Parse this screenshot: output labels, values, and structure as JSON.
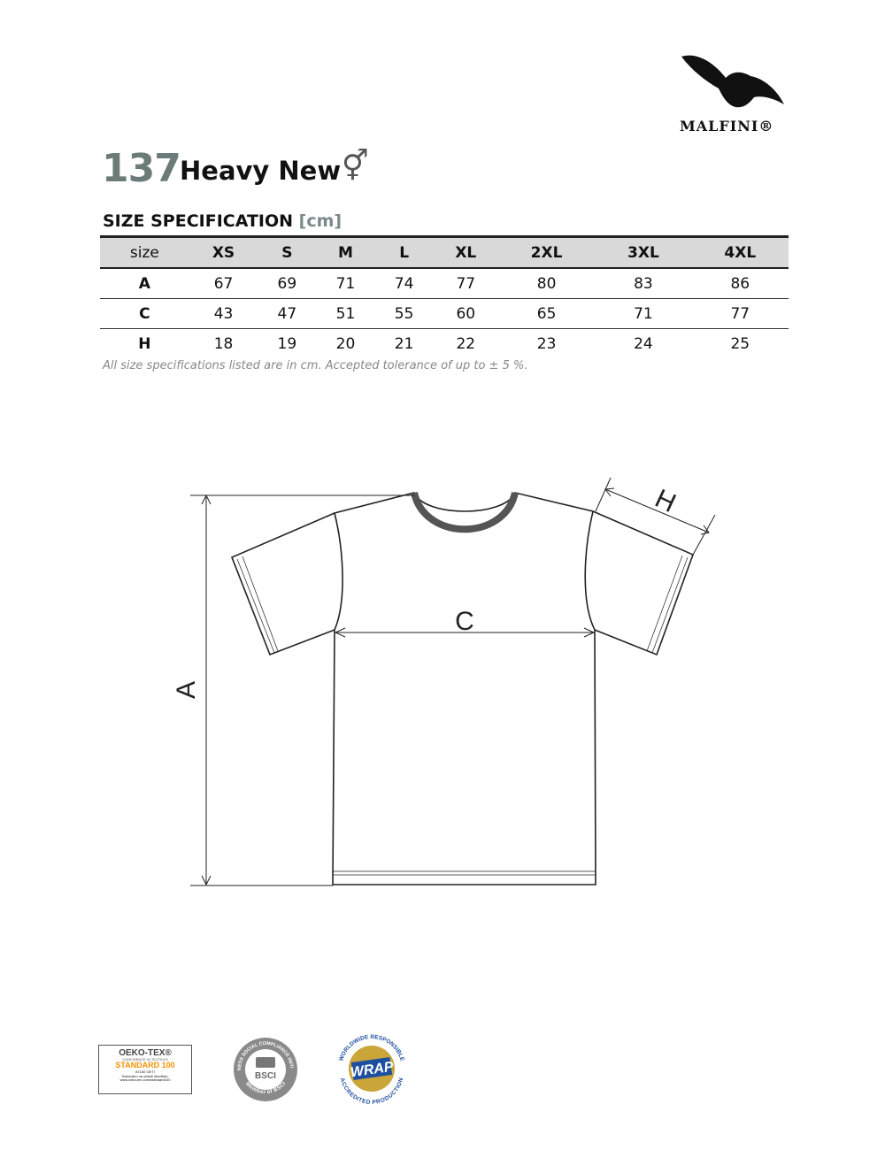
{
  "brand": {
    "name": "MALFINI®"
  },
  "product": {
    "number": "137",
    "name": "Heavy New",
    "gender_symbol": "⚥"
  },
  "spec": {
    "title": "SIZE SPECIFICATION",
    "unit": "[cm]"
  },
  "table": {
    "headers": [
      "size",
      "XS",
      "S",
      "M",
      "L",
      "XL",
      "2XL",
      "3XL",
      "4XL"
    ],
    "rows": [
      {
        "label": "A",
        "values": [
          "67",
          "69",
          "71",
          "74",
          "77",
          "80",
          "83",
          "86"
        ]
      },
      {
        "label": "C",
        "values": [
          "43",
          "47",
          "51",
          "55",
          "60",
          "65",
          "71",
          "77"
        ]
      },
      {
        "label": "H",
        "values": [
          "18",
          "19",
          "20",
          "21",
          "22",
          "23",
          "24",
          "25"
        ]
      }
    ]
  },
  "note": "All size specifications listed are in cm. Accepted tolerance of up to ± 5 %.",
  "diagram": {
    "labels": {
      "a": "A",
      "c": "C",
      "h": "H"
    }
  },
  "certifications": {
    "oeko": {
      "title": "OEKO-TEX®",
      "sub": "CONFIDENCE IN TEXTILES",
      "standard": "STANDARD 100",
      "code": "87150 OETI",
      "line1": "Testováno na obsah škodlivin.",
      "line2": "www.oeko-tex.com/standard100"
    },
    "bsci": {
      "label": "BSCI",
      "ring": "BUSINESS SOCIAL COMPLIANCE INITIATIVE",
      "member": "Member of BSCI"
    },
    "wrap": {
      "label": "WRAP",
      "top": "WORLDWIDE RESPONSIBLE",
      "bottom": "ACCREDITED PRODUCTION"
    }
  }
}
